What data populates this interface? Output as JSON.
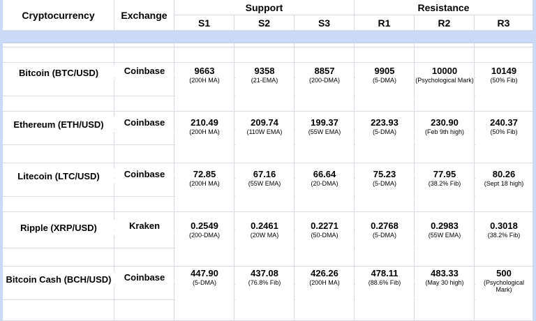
{
  "header": {
    "crypto_label": "Cryptocurrency",
    "exchange_label": "Exchange",
    "support_label": "Support",
    "resistance_label": "Resistance",
    "levels": [
      "S1",
      "S2",
      "S3",
      "R1",
      "R2",
      "R3"
    ]
  },
  "rows": [
    {
      "name": "Bitcoin (BTC/USD)",
      "exchange": "Coinbase",
      "levels": [
        {
          "value": "9663",
          "note": "(200H MA)"
        },
        {
          "value": "9358",
          "note": "(21-EMA)"
        },
        {
          "value": "8857",
          "note": "(200-DMA)"
        },
        {
          "value": "9905",
          "note": "(5-DMA)"
        },
        {
          "value": "10000",
          "note": "(Psychological Mark)"
        },
        {
          "value": "10149",
          "note": "(50% Fib)"
        }
      ]
    },
    {
      "name": "Ethereum (ETH/USD)",
      "exchange": "Coinbase",
      "levels": [
        {
          "value": "210.49",
          "note": "(200H MA)"
        },
        {
          "value": "209.74",
          "note": "(110W EMA)"
        },
        {
          "value": "199.37",
          "note": "(55W EMA)"
        },
        {
          "value": "223.93",
          "note": "(5-DMA)"
        },
        {
          "value": "230.90",
          "note": "(Feb 9th high)"
        },
        {
          "value": "240.37",
          "note": "(50% Fib)"
        }
      ]
    },
    {
      "name": "Litecoin (LTC/USD)",
      "exchange": "Coinbase",
      "levels": [
        {
          "value": "72.85",
          "note": "(200H MA)"
        },
        {
          "value": "67.16",
          "note": "(55W EMA)"
        },
        {
          "value": "66.64",
          "note": "(20-DMA)"
        },
        {
          "value": "75.23",
          "note": "(5-DMA)"
        },
        {
          "value": "77.95",
          "note": "(38.2% Fib)"
        },
        {
          "value": "80.26",
          "note": "(Sept 18 high)"
        }
      ]
    },
    {
      "name": "Ripple (XRP/USD)",
      "exchange": "Kraken",
      "levels": [
        {
          "value": "0.2549",
          "note": "(200-DMA)"
        },
        {
          "value": "0.2461",
          "note": "(20W MA)"
        },
        {
          "value": "0.2271",
          "note": "(50-DMA)"
        },
        {
          "value": "0.2768",
          "note": "(5-DMA)"
        },
        {
          "value": "0.2983",
          "note": "(55W EMA)"
        },
        {
          "value": "0.3018",
          "note": "(38.2% Fib)"
        }
      ]
    },
    {
      "name": "Bitcoin Cash (BCH/USD)",
      "exchange": "Coinbase",
      "levels": [
        {
          "value": "447.90",
          "note": "(5-DMA)"
        },
        {
          "value": "437.08",
          "note": "(76.8% Fib)"
        },
        {
          "value": "426.26",
          "note": "(200H MA)"
        },
        {
          "value": "478.11",
          "note": "(88.6% Fib)"
        },
        {
          "value": "483.33",
          "note": "(May 30 high)"
        },
        {
          "value": "500",
          "note": "(Psychological Mark)"
        }
      ]
    }
  ],
  "colors": {
    "band": "#c9d9f6",
    "grid": "#d6dbe3"
  }
}
